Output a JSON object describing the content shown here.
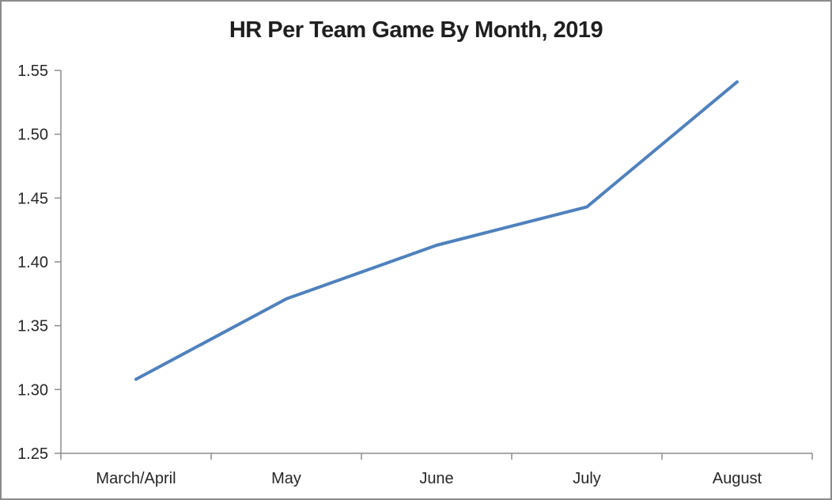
{
  "chart_data": {
    "type": "line",
    "title": "HR Per Team Game By Month, 2019",
    "categories": [
      "March/April",
      "May",
      "June",
      "July",
      "August"
    ],
    "values": [
      1.308,
      1.371,
      1.413,
      1.443,
      1.541
    ],
    "yticks": [
      "1.25",
      "1.30",
      "1.35",
      "1.40",
      "1.45",
      "1.50",
      "1.55"
    ],
    "ylim": [
      1.25,
      1.55
    ],
    "xlabel": "",
    "ylabel": "",
    "grid": false,
    "legend": "none"
  },
  "colors": {
    "line": "#4F81BD",
    "axis": "#8C8C8C",
    "text": "#262626",
    "title": "#1F1F1F",
    "frame_border": "#8A8A8A",
    "background": "#FFFFFF"
  }
}
